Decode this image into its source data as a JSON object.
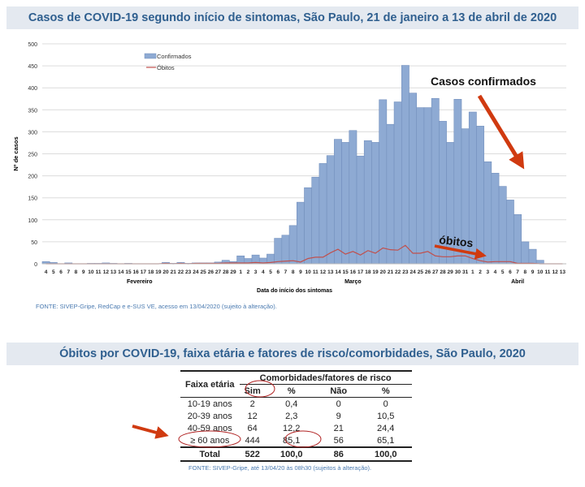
{
  "chart_title": "Casos de COVID-19 segundo início de sintomas, São Paulo, 21 de janeiro a 13 de abril de 2020",
  "chart_source": "FONTE: SIVEP-Gripe, RedCap e e-SUS VE, acesso em 13/04/2020 (sujeito à alteração).",
  "annotations": {
    "cases": "Casos confirmados",
    "deaths": "óbitos"
  },
  "colors": {
    "bars": "#8eaad3",
    "deaths": "#c0504d",
    "arrow": "#d03a10",
    "title": "#2f5f8f"
  },
  "chart_data": {
    "type": "bar",
    "title": "Casos de COVID-19 segundo início de sintomas, São Paulo, 21 de janeiro a 13 de abril de 2020",
    "xlabel": "Data do início dos sintomas",
    "ylabel": "Nº de casos",
    "ylim": [
      0,
      500
    ],
    "yticks": [
      0,
      50,
      100,
      150,
      200,
      250,
      300,
      350,
      400,
      450,
      500
    ],
    "grid": true,
    "legend_position": "top-left",
    "months": [
      {
        "label": "Fevereiro",
        "from": 0,
        "to": 25
      },
      {
        "label": "Março",
        "from": 26,
        "to": 56
      },
      {
        "label": "Abril",
        "from": 57,
        "to": 69
      }
    ],
    "categories": [
      "4",
      "5",
      "6",
      "7",
      "8",
      "9",
      "10",
      "11",
      "12",
      "13",
      "14",
      "15",
      "16",
      "17",
      "18",
      "19",
      "20",
      "21",
      "22",
      "23",
      "24",
      "25",
      "26",
      "27",
      "28",
      "29",
      "1",
      "2",
      "3",
      "4",
      "5",
      "6",
      "7",
      "8",
      "9",
      "10",
      "11",
      "12",
      "13",
      "14",
      "15",
      "16",
      "17",
      "18",
      "19",
      "20",
      "21",
      "22",
      "23",
      "24",
      "25",
      "26",
      "27",
      "28",
      "29",
      "30",
      "31",
      "1",
      "2",
      "3",
      "4",
      "5",
      "6",
      "7",
      "8",
      "9",
      "10",
      "11",
      "12",
      "13"
    ],
    "series": [
      {
        "name": "Confirmados",
        "type": "bar",
        "values": [
          5,
          3,
          0,
          2,
          0,
          0,
          1,
          1,
          2,
          1,
          0,
          1,
          0,
          0,
          0,
          0,
          3,
          1,
          3,
          1,
          2,
          2,
          2,
          4,
          8,
          5,
          18,
          12,
          20,
          13,
          22,
          58,
          65,
          87,
          140,
          173,
          197,
          228,
          246,
          283,
          276,
          303,
          245,
          280,
          276,
          373,
          317,
          368,
          451,
          388,
          355,
          355,
          376,
          324,
          276,
          374,
          307,
          345,
          313,
          232,
          206,
          176,
          145,
          112,
          50,
          33,
          8,
          0,
          0,
          0
        ]
      },
      {
        "name": "Óbitos",
        "type": "line",
        "values": [
          0,
          0,
          0,
          0,
          0,
          0,
          0,
          0,
          0,
          0,
          0,
          0,
          0,
          0,
          0,
          0,
          1,
          0,
          1,
          0,
          1,
          1,
          1,
          1,
          2,
          2,
          2,
          2,
          3,
          2,
          3,
          5,
          6,
          7,
          4,
          12,
          15,
          15,
          25,
          33,
          22,
          28,
          20,
          30,
          24,
          36,
          32,
          31,
          42,
          24,
          24,
          28,
          18,
          16,
          16,
          18,
          18,
          12,
          7,
          4,
          5,
          5,
          5,
          1,
          1,
          1,
          0,
          0,
          0,
          0
        ]
      }
    ]
  },
  "table_title": "Óbitos por COVID-19, faixa etária e fatores de risco/comorbidades, São Paulo, 2020",
  "table": {
    "col_group": "Comorbidades/fatores de risco",
    "row_header": "Faixa etária",
    "columns": [
      "Sim",
      "%",
      "Não",
      "%"
    ],
    "rows": [
      [
        "10-19 anos",
        "2",
        "0,4",
        "0",
        "0"
      ],
      [
        "20-39 anos",
        "12",
        "2,3",
        "9",
        "10,5"
      ],
      [
        "40-59 anos",
        "64",
        "12,2",
        "21",
        "24,4"
      ],
      [
        "≥ 60 anos",
        "444",
        "85,1",
        "56",
        "65,1"
      ]
    ],
    "total": [
      "Total",
      "522",
      "100,0",
      "86",
      "100,0"
    ]
  },
  "table_source": "FONTE: SIVEP-Gripe, até 13/04/20 às 08h30 (sujeitos à alteração)."
}
